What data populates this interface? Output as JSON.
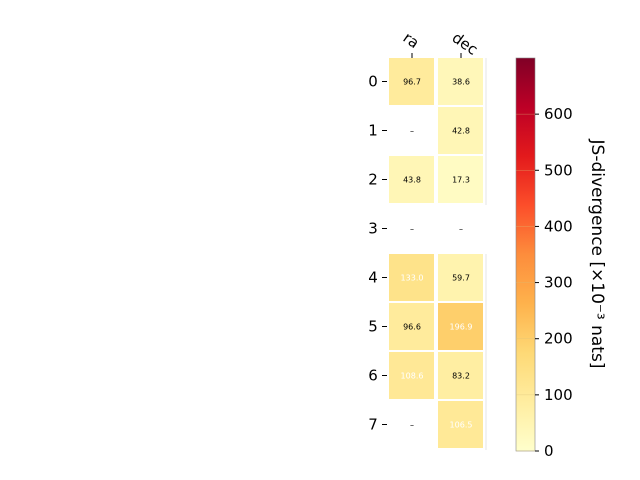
{
  "chart_data": {
    "type": "heatmap",
    "columns": [
      "ra",
      "dec"
    ],
    "rows": [
      "0",
      "1",
      "2",
      "3",
      "4",
      "5",
      "6",
      "7"
    ],
    "cells": [
      [
        {
          "value": 96.7,
          "label": "96.7"
        },
        {
          "value": 38.6,
          "label": "38.6"
        }
      ],
      [
        {
          "value": null,
          "label": "–"
        },
        {
          "value": 42.8,
          "label": "42.8"
        }
      ],
      [
        {
          "value": 43.8,
          "label": "43.8"
        },
        {
          "value": 17.3,
          "label": "17.3"
        }
      ],
      [
        {
          "value": null,
          "label": "–"
        },
        {
          "value": null,
          "label": "–"
        }
      ],
      [
        {
          "value": 133.0,
          "label": "133.0"
        },
        {
          "value": 59.7,
          "label": "59.7"
        }
      ],
      [
        {
          "value": 96.6,
          "label": "96.6"
        },
        {
          "value": 196.9,
          "label": "196.9"
        }
      ],
      [
        {
          "value": 108.6,
          "label": "108.6"
        },
        {
          "value": 83.2,
          "label": "83.2"
        }
      ],
      [
        {
          "value": null,
          "label": "–"
        },
        {
          "value": 106.5,
          "label": "106.5"
        }
      ]
    ],
    "highlighted_label_cells": [
      [
        4,
        0
      ],
      [
        5,
        1
      ],
      [
        6,
        0
      ],
      [
        7,
        1
      ]
    ],
    "colorbar": {
      "label": "JS-divergence [×10⁻³ nats]",
      "range": [
        0,
        700
      ],
      "ticks": [
        0,
        100,
        200,
        300,
        400,
        500,
        600
      ],
      "colormap": "YlOrRd",
      "colors": [
        "#ffffcc",
        "#ffeda0",
        "#fed976",
        "#feb24c",
        "#fd8d3c",
        "#fc4e2a",
        "#e31a1c",
        "#bd0026",
        "#800026"
      ]
    },
    "grid": false,
    "highlight_text_color": "#ffffff",
    "text_color": "#000000"
  }
}
